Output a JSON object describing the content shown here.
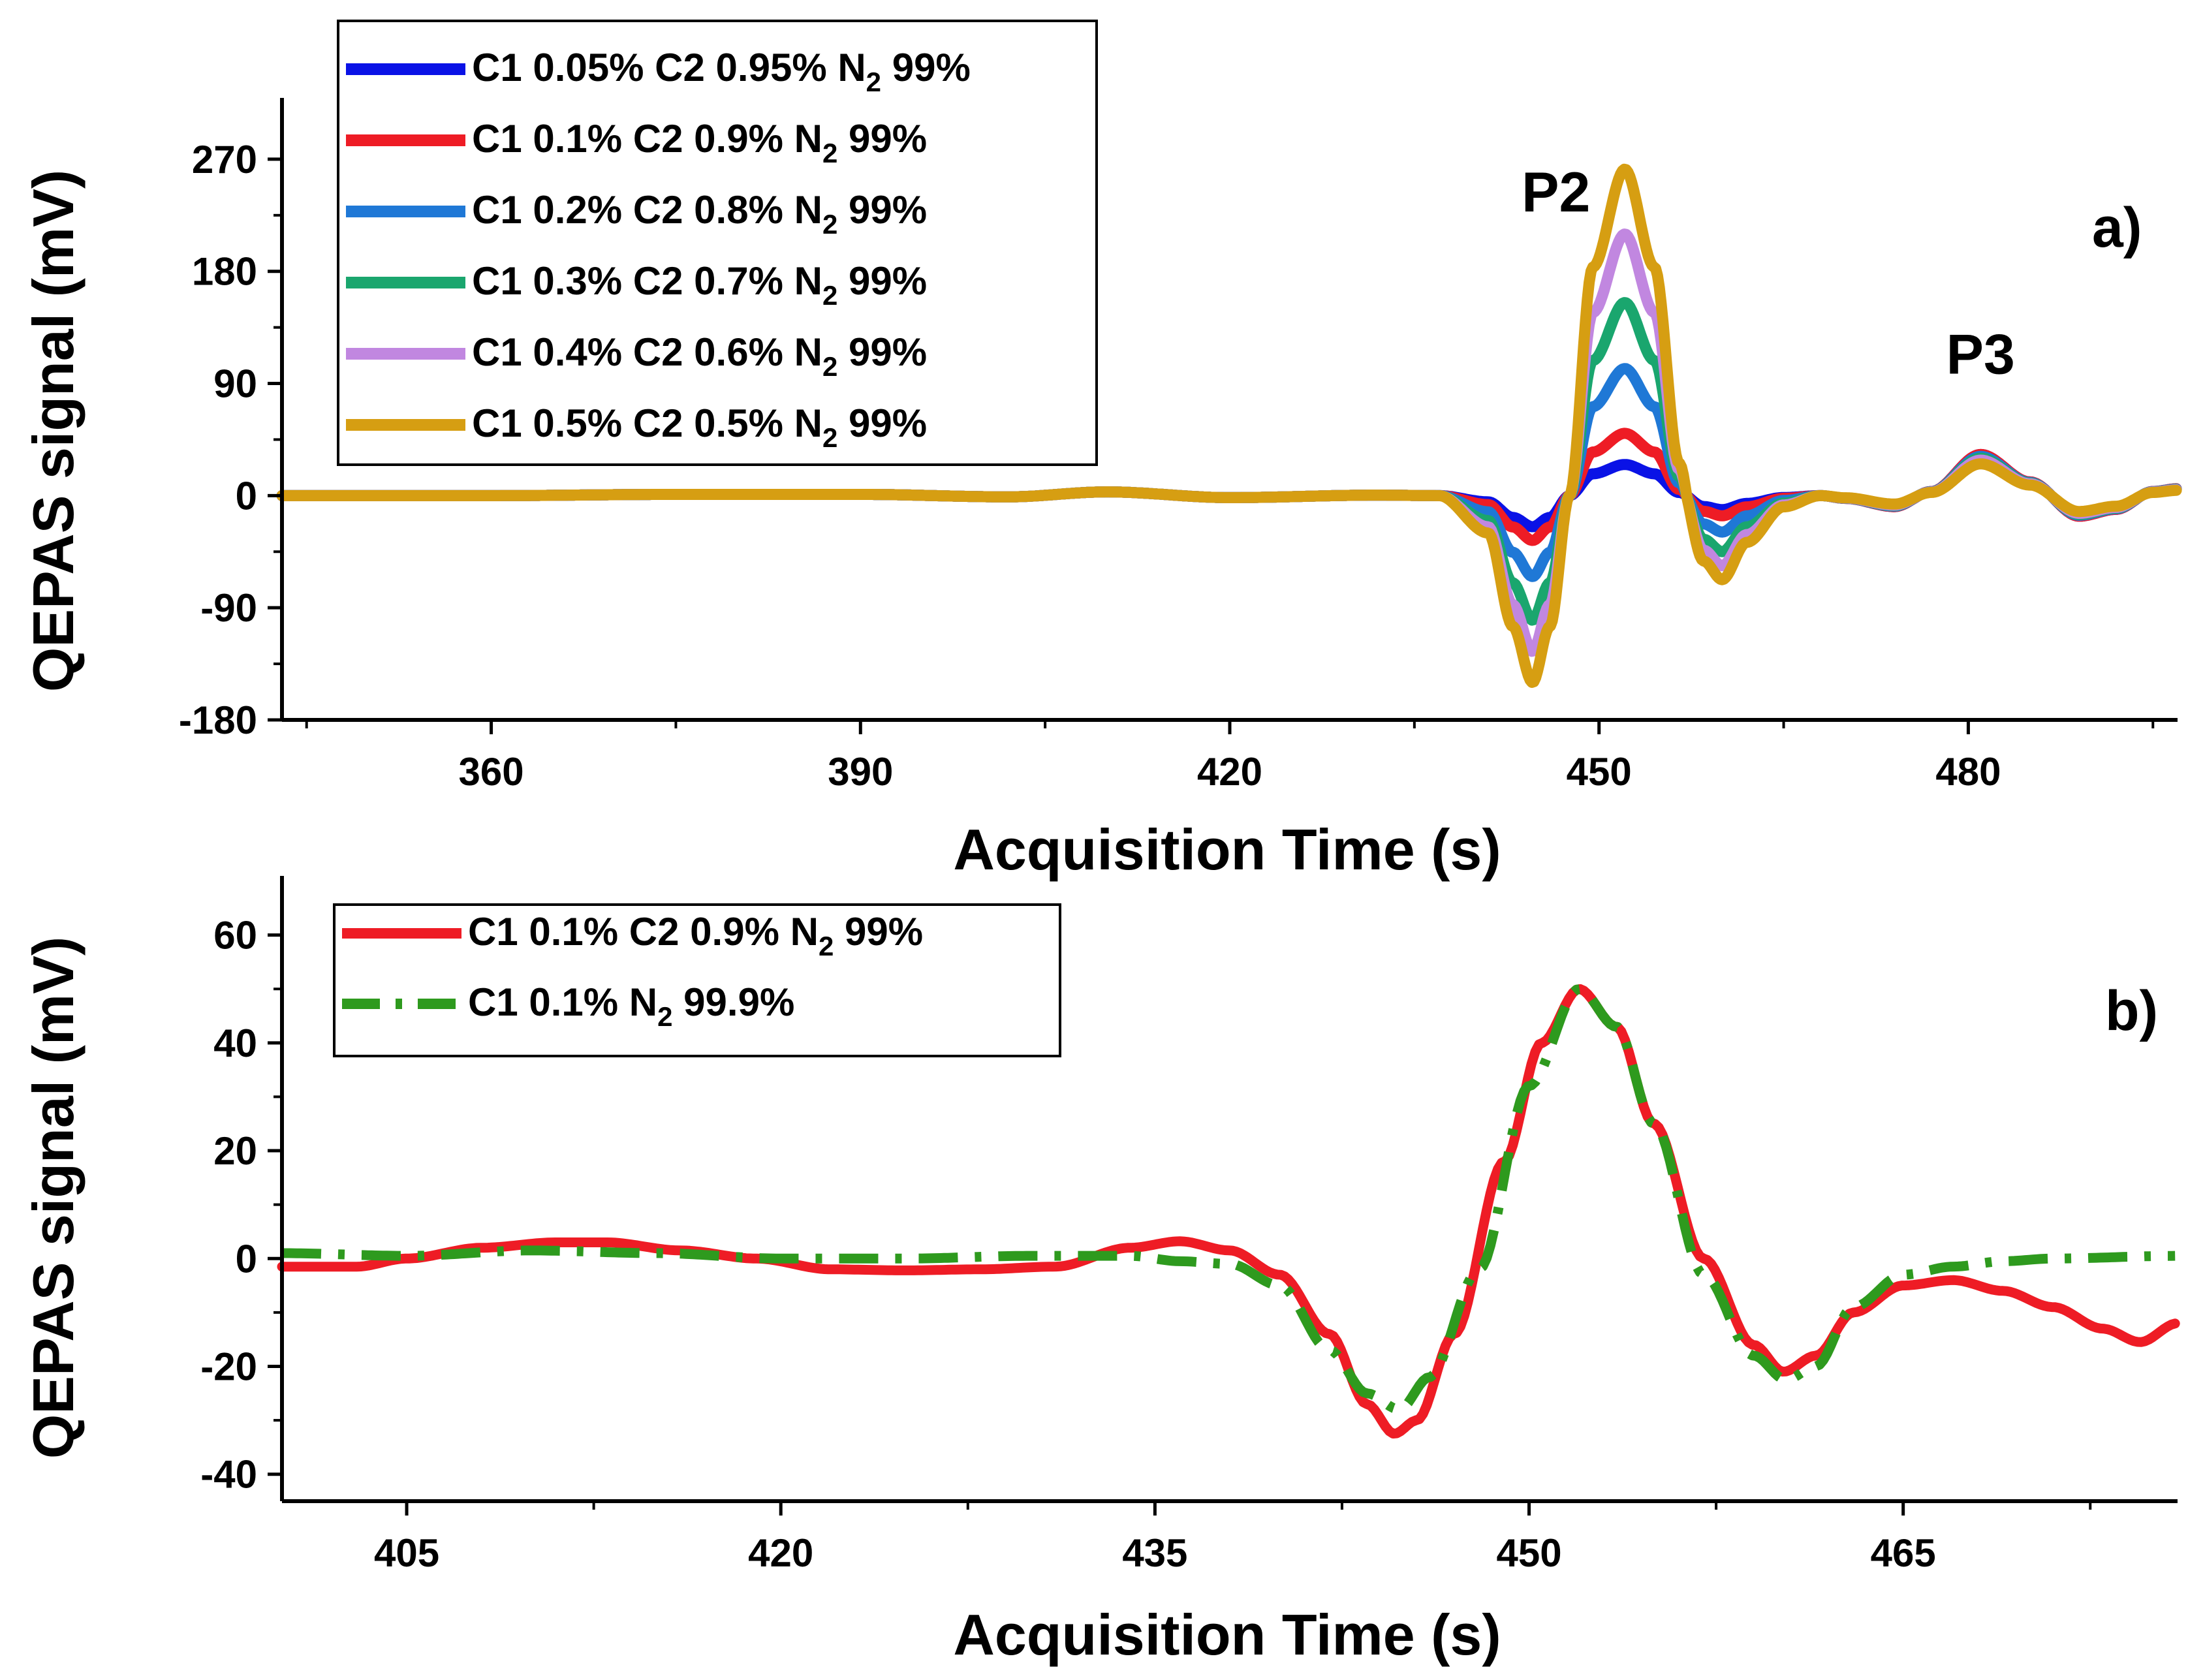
{
  "chart_data": [
    {
      "type": "line",
      "panel_label": "a)",
      "xlabel": "Acquisition Time (s)",
      "ylabel": "QEPAS signal (mV)",
      "xlim": [
        343,
        497
      ],
      "ylim": [
        -180,
        315
      ],
      "xticks": [
        360,
        390,
        420,
        450,
        480
      ],
      "yticks": [
        -180,
        -90,
        0,
        90,
        180,
        270
      ],
      "legend_position": "top-left",
      "annotations": [
        {
          "text": "P2",
          "x": 446.5,
          "y": 228
        },
        {
          "text": "P3",
          "x": 481,
          "y": 98
        }
      ],
      "peak_template": [
        [
          343,
          0
        ],
        [
          360,
          0
        ],
        [
          375,
          0.5
        ],
        [
          390,
          0.5
        ],
        [
          402,
          -0.5
        ],
        [
          410,
          1.5
        ],
        [
          420,
          -0.8
        ],
        [
          432,
          0.2
        ],
        [
          437,
          0
        ],
        [
          441,
          -0.2
        ],
        [
          443,
          -0.7
        ],
        [
          444.6,
          -1
        ],
        [
          446,
          -0.7
        ],
        [
          447.6,
          0
        ],
        [
          449.5,
          0.7
        ],
        [
          452.1,
          1
        ],
        [
          454.5,
          0.7
        ],
        [
          456.5,
          0.1
        ],
        [
          458.5,
          -0.35
        ],
        [
          460,
          -0.45
        ],
        [
          462,
          -0.25
        ],
        [
          465,
          -0.06
        ],
        [
          468,
          0
        ]
      ],
      "p3_template": [
        [
          468,
          0
        ],
        [
          470,
          -2
        ],
        [
          474,
          -8
        ],
        [
          477,
          3
        ],
        [
          481,
          30
        ],
        [
          485,
          10
        ],
        [
          489,
          -15
        ],
        [
          492,
          -10
        ],
        [
          495,
          3
        ],
        [
          497,
          5
        ]
      ],
      "series": [
        {
          "name": "C1 0.05% C2 0.95% N2 99%",
          "label_main": "C1 0.05% C2 0.95% N",
          "label_sub": "2",
          "label_tail": " 99%",
          "color": "#0a12e6",
          "p2_peak": 25,
          "p2_valley": 25,
          "p3_scale": 1.1
        },
        {
          "name": "C1 0.1% C2 0.9% N2 99%",
          "label_main": "C1 0.1% C2 0.9% N",
          "label_sub": "2",
          "label_tail": " 99%",
          "color": "#ee1c25",
          "p2_peak": 50,
          "p2_valley": 36,
          "p3_scale": 1.1
        },
        {
          "name": "C1 0.2% C2 0.8% N2 99%",
          "label_main": "C1 0.2% C2 0.8% N",
          "label_sub": "2",
          "label_tail": " 99%",
          "color": "#1f78d6",
          "p2_peak": 102,
          "p2_valley": 65,
          "p3_scale": 1.05
        },
        {
          "name": "C1 0.3% C2 0.7% N2 99%",
          "label_main": "C1 0.3% C2 0.7% N",
          "label_sub": "2",
          "label_tail": " 99%",
          "color": "#1aa66e",
          "p2_peak": 155,
          "p2_valley": 100,
          "p3_scale": 1.0
        },
        {
          "name": "C1 0.4% C2 0.6% N2 99%",
          "label_main": "C1 0.4% C2 0.6% N",
          "label_sub": "2",
          "label_tail": " 99%",
          "color": "#c187e0",
          "p2_peak": 210,
          "p2_valley": 125,
          "p3_scale": 0.95
        },
        {
          "name": "C1 0.5% C2 0.5% N2 99%",
          "label_main": "C1 0.5% C2 0.5% N",
          "label_sub": "2",
          "label_tail": " 99%",
          "color": "#d69e12",
          "p2_peak": 262,
          "p2_valley": 150,
          "p3_scale": 0.85
        }
      ]
    },
    {
      "type": "line",
      "panel_label": "b)",
      "xlabel": "Acquisition Time (s)",
      "ylabel": "QEPAS signal (mV)",
      "xlim": [
        400,
        476
      ],
      "ylim": [
        -45,
        70
      ],
      "xticks": [
        405,
        420,
        435,
        450,
        465
      ],
      "yticks": [
        -40,
        -20,
        0,
        20,
        40,
        60
      ],
      "legend_position": "top-left",
      "series": [
        {
          "name": "C1 0.1% C2 0.9% N2 99%",
          "label_main": "C1 0.1% C2 0.9% N",
          "label_sub": "2",
          "label_tail": " 99%",
          "color": "#ee1c25",
          "dash": "solid",
          "points": [
            [
              400,
              -1.5
            ],
            [
              403,
              -1.5
            ],
            [
              405,
              0
            ],
            [
              408,
              2
            ],
            [
              411,
              3
            ],
            [
              413,
              3
            ],
            [
              416,
              1.5
            ],
            [
              419,
              0
            ],
            [
              422,
              -2
            ],
            [
              425,
              -2.2
            ],
            [
              428,
              -2
            ],
            [
              431,
              -1.5
            ],
            [
              434,
              2
            ],
            [
              436,
              3.2
            ],
            [
              438,
              1.5
            ],
            [
              440,
              -3
            ],
            [
              442,
              -14
            ],
            [
              443.5,
              -27
            ],
            [
              444.6,
              -32.5
            ],
            [
              445.5,
              -30
            ],
            [
              447,
              -14
            ],
            [
              449,
              18
            ],
            [
              450.5,
              40
            ],
            [
              452,
              50
            ],
            [
              453.5,
              43
            ],
            [
              455,
              25
            ],
            [
              457,
              0
            ],
            [
              459,
              -16
            ],
            [
              460.2,
              -21
            ],
            [
              461.5,
              -18
            ],
            [
              463,
              -10
            ],
            [
              465,
              -5
            ],
            [
              467,
              -4
            ],
            [
              469,
              -6
            ],
            [
              471,
              -9
            ],
            [
              473,
              -13
            ],
            [
              474.5,
              -15.5
            ],
            [
              476,
              -12
            ]
          ]
        },
        {
          "name": "C1 0.1% N2 99.9%",
          "label_main": "C1 0.1% N",
          "label_sub": "2",
          "label_tail": " 99.9%",
          "color": "#2e9a1e",
          "dash": "dashdot",
          "points": [
            [
              400,
              1
            ],
            [
              405,
              0.5
            ],
            [
              410,
              1.5
            ],
            [
              415,
              1
            ],
            [
              420,
              0
            ],
            [
              425,
              0
            ],
            [
              430,
              0.5
            ],
            [
              434,
              0.5
            ],
            [
              436,
              -0.5
            ],
            [
              438,
              -1
            ],
            [
              440,
              -5
            ],
            [
              442,
              -17
            ],
            [
              443.5,
              -25
            ],
            [
              444.8,
              -28
            ],
            [
              446,
              -22
            ],
            [
              448,
              -2
            ],
            [
              450,
              32
            ],
            [
              452,
              50
            ],
            [
              453.5,
              43
            ],
            [
              455,
              25
            ],
            [
              457,
              -3
            ],
            [
              459,
              -18
            ],
            [
              460.3,
              -22.5
            ],
            [
              461.5,
              -20
            ],
            [
              463,
              -9
            ],
            [
              465,
              -3
            ],
            [
              467,
              -1.5
            ],
            [
              469,
              -0.5
            ],
            [
              471,
              0
            ],
            [
              476,
              0.5
            ]
          ]
        }
      ]
    }
  ]
}
